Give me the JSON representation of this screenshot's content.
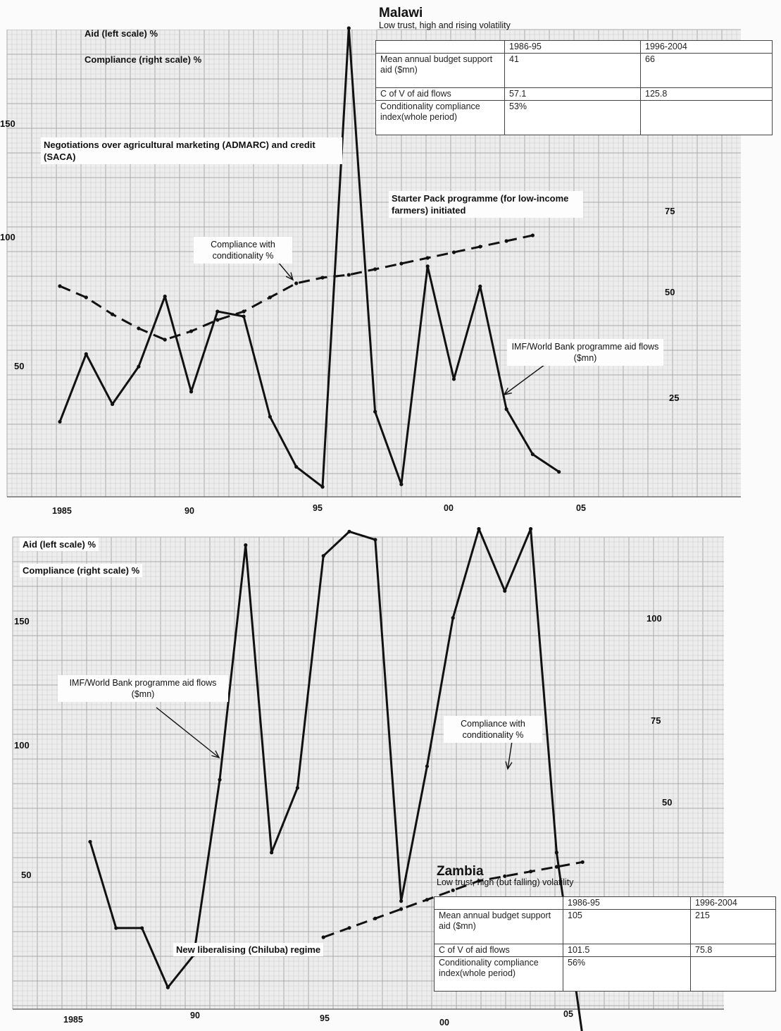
{
  "malawi": {
    "title": "Malawi",
    "subtitle": "Low trust, high and rising volatility",
    "legend": {
      "aid": "Aid (left scale) %",
      "compliance": "Compliance (right scale) %"
    },
    "table": {
      "headers": [
        "",
        "1986-95",
        "1996-2004"
      ],
      "rows": [
        [
          "Mean annual budget support aid ($mn)",
          "41",
          "66"
        ],
        [
          "C of V of aid flows",
          "57.1",
          "125.8"
        ],
        [
          "Conditionality compliance index(whole period)",
          "53%",
          ""
        ]
      ]
    },
    "annotations": {
      "negotiations": "Negotiations over agricultural marketing (ADMARC) and credit (SACA)",
      "starter_pack": "Starter Pack programme (for low-income farmers) initiated",
      "compliance_note": "Compliance with conditionality %",
      "aid_note": "IMF/World Bank programme aid flows ($mn)"
    },
    "left_ticks": [
      "150",
      "100",
      "50"
    ],
    "right_ticks": [
      "75",
      "50",
      "25"
    ],
    "x_ticks": [
      "1985",
      "90",
      "95",
      "00",
      "05"
    ]
  },
  "zambia": {
    "title": "Zambia",
    "subtitle": "Low trust, high (but falling) volatility",
    "legend": {
      "aid": "Aid (left scale) %",
      "compliance": "Compliance (right scale) %"
    },
    "table": {
      "headers": [
        "",
        "1986-95",
        "1996-2004"
      ],
      "rows": [
        [
          "Mean annual budget support aid ($mn)",
          "105",
          "215"
        ],
        [
          "C of V of aid flows",
          "101.5",
          "75.8"
        ],
        [
          "Conditionality compliance index(whole period)",
          "56%",
          ""
        ]
      ]
    },
    "annotations": {
      "aid_note": "IMF/World Bank programme aid flows ($mn)",
      "compliance_note": "Compliance with conditionality %",
      "regime": "New liberalising (Chiluba) regime"
    },
    "left_ticks": [
      "150",
      "100",
      "50"
    ],
    "right_ticks": [
      "100",
      "75",
      "50"
    ],
    "x_ticks": [
      "1985",
      "90",
      "95",
      "00",
      "05"
    ]
  },
  "chart_data": [
    {
      "type": "line",
      "title": "Malawi",
      "x_range": [
        1984,
        2007
      ],
      "y_left_range": [
        0,
        185
      ],
      "y_right_range": [
        0,
        100
      ],
      "series": [
        {
          "name": "IMF/World Bank programme aid flows ($mn)",
          "axis": "left",
          "style": "solid",
          "x": [
            1985,
            1986,
            1987,
            1988,
            1989,
            1990,
            1991,
            1992,
            1993,
            1994,
            1995,
            1996,
            1997,
            1998,
            1999,
            2000,
            2001,
            2002,
            2003,
            2004
          ],
          "y": [
            28,
            55,
            35,
            50,
            78,
            40,
            72,
            70,
            30,
            10,
            2,
            185,
            32,
            3,
            90,
            45,
            82,
            33,
            15,
            8
          ]
        },
        {
          "name": "Compliance with conditionality %",
          "axis": "right",
          "style": "dashed",
          "x": [
            1985,
            1986,
            1987,
            1988,
            1989,
            1990,
            1991,
            1992,
            1993,
            1994,
            1995,
            1996,
            1997,
            1998,
            1999,
            2000,
            2001,
            2002,
            2003
          ],
          "y": [
            56,
            52,
            46,
            41,
            37,
            40,
            44,
            47,
            52,
            57,
            59,
            60,
            62,
            64,
            66,
            68,
            70,
            72,
            74
          ]
        }
      ]
    },
    {
      "type": "line",
      "title": "Zambia",
      "x_range": [
        1984,
        2007
      ],
      "y_left_range": [
        0,
        185
      ],
      "y_right_range": [
        0,
        150
      ],
      "series": [
        {
          "name": "IMF/World Bank programme aid flows ($mn)",
          "axis": "left",
          "style": "solid",
          "x": [
            1985,
            1986,
            1987,
            1988,
            1989,
            1990,
            1991,
            1992,
            1993,
            1994,
            1995,
            1996,
            1997,
            1998,
            1999,
            2000,
            2001,
            2002,
            2003,
            2004
          ],
          "y": [
            72,
            40,
            40,
            18,
            30,
            95,
            182,
            68,
            92,
            178,
            187,
            184,
            50,
            100,
            155,
            188,
            165,
            188,
            68,
            0
          ]
        },
        {
          "name": "Compliance with conditionality %",
          "axis": "right",
          "style": "dashed",
          "x": [
            1994,
            1995,
            1996,
            1997,
            1998,
            1999,
            2000,
            2001,
            2002,
            2003,
            2004
          ],
          "y": [
            30,
            34,
            38,
            42,
            46,
            50,
            54,
            56,
            58,
            60,
            62
          ]
        }
      ]
    }
  ]
}
